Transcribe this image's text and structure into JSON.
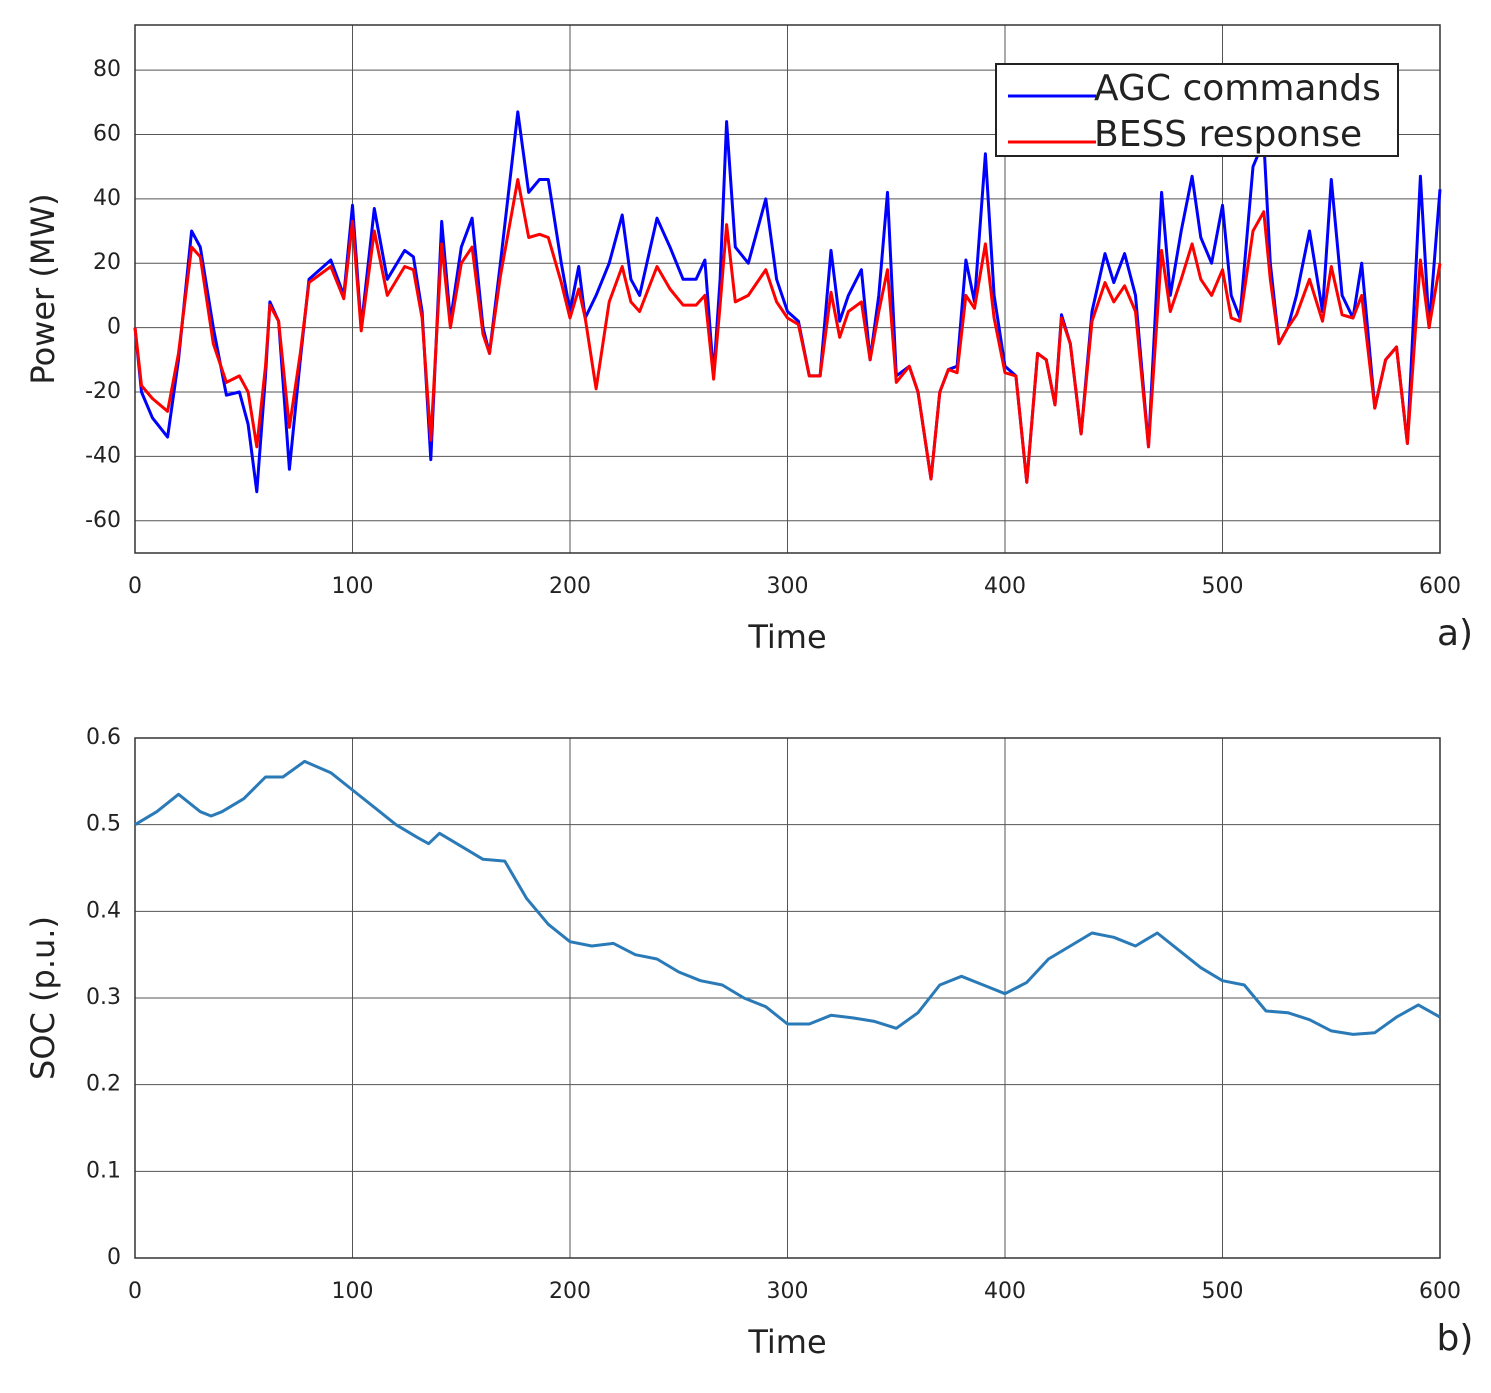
{
  "chart_data": [
    {
      "type": "line",
      "xlabel": "Time",
      "ylabel": "Power (MW)",
      "annotation": "a)",
      "xlim": [
        0,
        600
      ],
      "xticks": [
        0,
        100,
        200,
        300,
        400,
        500,
        600
      ],
      "ylim": [
        -70,
        94
      ],
      "yticks": [
        -60,
        -40,
        -20,
        0,
        20,
        40,
        60,
        80
      ],
      "grid": true,
      "legend": "upper right",
      "x": [
        0,
        3,
        8,
        15,
        20,
        26,
        30,
        36,
        42,
        48,
        52,
        56,
        60,
        62,
        66,
        71,
        76,
        80,
        90,
        96,
        100,
        104,
        110,
        116,
        124,
        128,
        132,
        136,
        141,
        145,
        150,
        155,
        160,
        163,
        168,
        176,
        181,
        186,
        190,
        196,
        200,
        204,
        207,
        212,
        218,
        224,
        228,
        232,
        240,
        246,
        252,
        258,
        262,
        266,
        269,
        272,
        276,
        282,
        290,
        295,
        300,
        305,
        310,
        315,
        320,
        324,
        328,
        334,
        338,
        342,
        346,
        350,
        356,
        360,
        366,
        370,
        374,
        378,
        382,
        386,
        391,
        395,
        400,
        405,
        410,
        415,
        419,
        423,
        426,
        430,
        435,
        440,
        446,
        450,
        455,
        460,
        466,
        472,
        476,
        481,
        486,
        490,
        495,
        500,
        504,
        508,
        514,
        519,
        522,
        526,
        530,
        534,
        540,
        546,
        550,
        555,
        560,
        564,
        570,
        575,
        580,
        585,
        591,
        595,
        600
      ],
      "series": [
        {
          "name": "AGC commands",
          "color": "#0000ff",
          "values": [
            0,
            -20,
            -28,
            -34,
            -10,
            30,
            25,
            0,
            -21,
            -20,
            -30,
            -51,
            -15,
            8,
            2,
            -44,
            -10,
            15,
            21,
            10,
            38,
            0,
            37,
            15,
            24,
            22,
            5,
            -41,
            33,
            2,
            25,
            34,
            0,
            -8,
            20,
            67,
            42,
            46,
            46,
            20,
            5,
            19,
            3,
            10,
            20,
            35,
            15,
            10,
            34,
            25,
            15,
            15,
            21,
            -15,
            15,
            64,
            25,
            20,
            40,
            15,
            5,
            2,
            -15,
            -15,
            24,
            2,
            10,
            18,
            -10,
            10,
            42,
            -15,
            -12,
            -20,
            -47,
            -20,
            -13,
            -12,
            21,
            8,
            54,
            10,
            -12,
            -15,
            -48,
            -8,
            -10,
            -24,
            4,
            -5,
            -33,
            5,
            23,
            14,
            23,
            10,
            -37,
            42,
            10,
            30,
            47,
            28,
            20,
            38,
            10,
            3,
            50,
            58,
            20,
            -5,
            0,
            10,
            30,
            5,
            46,
            10,
            3,
            20,
            -25,
            -10,
            -6,
            -36,
            47,
            0,
            43
          ]
        },
        {
          "name": "BESS response",
          "color": "#ff0000",
          "values": [
            0,
            -18,
            -22,
            -26,
            -8,
            25,
            22,
            -5,
            -17,
            -15,
            -20,
            -37,
            -12,
            7,
            2,
            -31,
            -8,
            14,
            19,
            9,
            33,
            -1,
            30,
            10,
            19,
            18,
            3,
            -35,
            26,
            0,
            20,
            25,
            -2,
            -8,
            16,
            46,
            28,
            29,
            28,
            14,
            3,
            12,
            3,
            -19,
            8,
            19,
            8,
            5,
            19,
            12,
            7,
            7,
            10,
            -16,
            7,
            32,
            8,
            10,
            18,
            8,
            3,
            1,
            -15,
            -15,
            11,
            -3,
            5,
            8,
            -10,
            5,
            18,
            -17,
            -12,
            -20,
            -47,
            -20,
            -13,
            -14,
            10,
            6,
            26,
            3,
            -14,
            -15,
            -48,
            -8,
            -10,
            -24,
            3,
            -5,
            -33,
            2,
            14,
            8,
            13,
            5,
            -37,
            24,
            5,
            15,
            26,
            15,
            10,
            18,
            3,
            2,
            30,
            36,
            15,
            -5,
            0,
            4,
            15,
            2,
            19,
            4,
            3,
            10,
            -25,
            -10,
            -6,
            -36,
            21,
            0,
            20
          ]
        }
      ]
    },
    {
      "type": "line",
      "xlabel": "Time",
      "ylabel": "SOC (p.u.)",
      "annotation": "b)",
      "xlim": [
        0,
        600
      ],
      "xticks": [
        0,
        100,
        200,
        300,
        400,
        500,
        600
      ],
      "ylim": [
        0,
        0.6
      ],
      "yticks": [
        0,
        0.1,
        0.2,
        0.3,
        0.4,
        0.5,
        0.6
      ],
      "grid": true,
      "x": [
        0,
        10,
        20,
        30,
        35,
        40,
        50,
        60,
        68,
        78,
        90,
        100,
        110,
        120,
        130,
        135,
        140,
        150,
        160,
        170,
        180,
        190,
        200,
        210,
        220,
        230,
        240,
        250,
        260,
        270,
        280,
        290,
        300,
        310,
        320,
        330,
        340,
        350,
        360,
        370,
        380,
        390,
        400,
        410,
        420,
        430,
        440,
        450,
        460,
        470,
        480,
        490,
        500,
        510,
        520,
        530,
        540,
        550,
        560,
        570,
        580,
        590,
        600
      ],
      "series": [
        {
          "color": "#2a7ab8",
          "values": [
            0.5,
            0.515,
            0.535,
            0.515,
            0.51,
            0.515,
            0.53,
            0.555,
            0.555,
            0.573,
            0.56,
            0.54,
            0.52,
            0.5,
            0.485,
            0.478,
            0.49,
            0.475,
            0.46,
            0.458,
            0.415,
            0.385,
            0.365,
            0.36,
            0.363,
            0.35,
            0.345,
            0.33,
            0.32,
            0.315,
            0.3,
            0.29,
            0.27,
            0.27,
            0.28,
            0.277,
            0.273,
            0.265,
            0.283,
            0.315,
            0.325,
            0.315,
            0.305,
            0.318,
            0.345,
            0.36,
            0.375,
            0.37,
            0.36,
            0.375,
            0.355,
            0.335,
            0.32,
            0.315,
            0.285,
            0.283,
            0.275,
            0.262,
            0.258,
            0.26,
            0.278,
            0.292,
            0.278
          ]
        }
      ]
    }
  ]
}
